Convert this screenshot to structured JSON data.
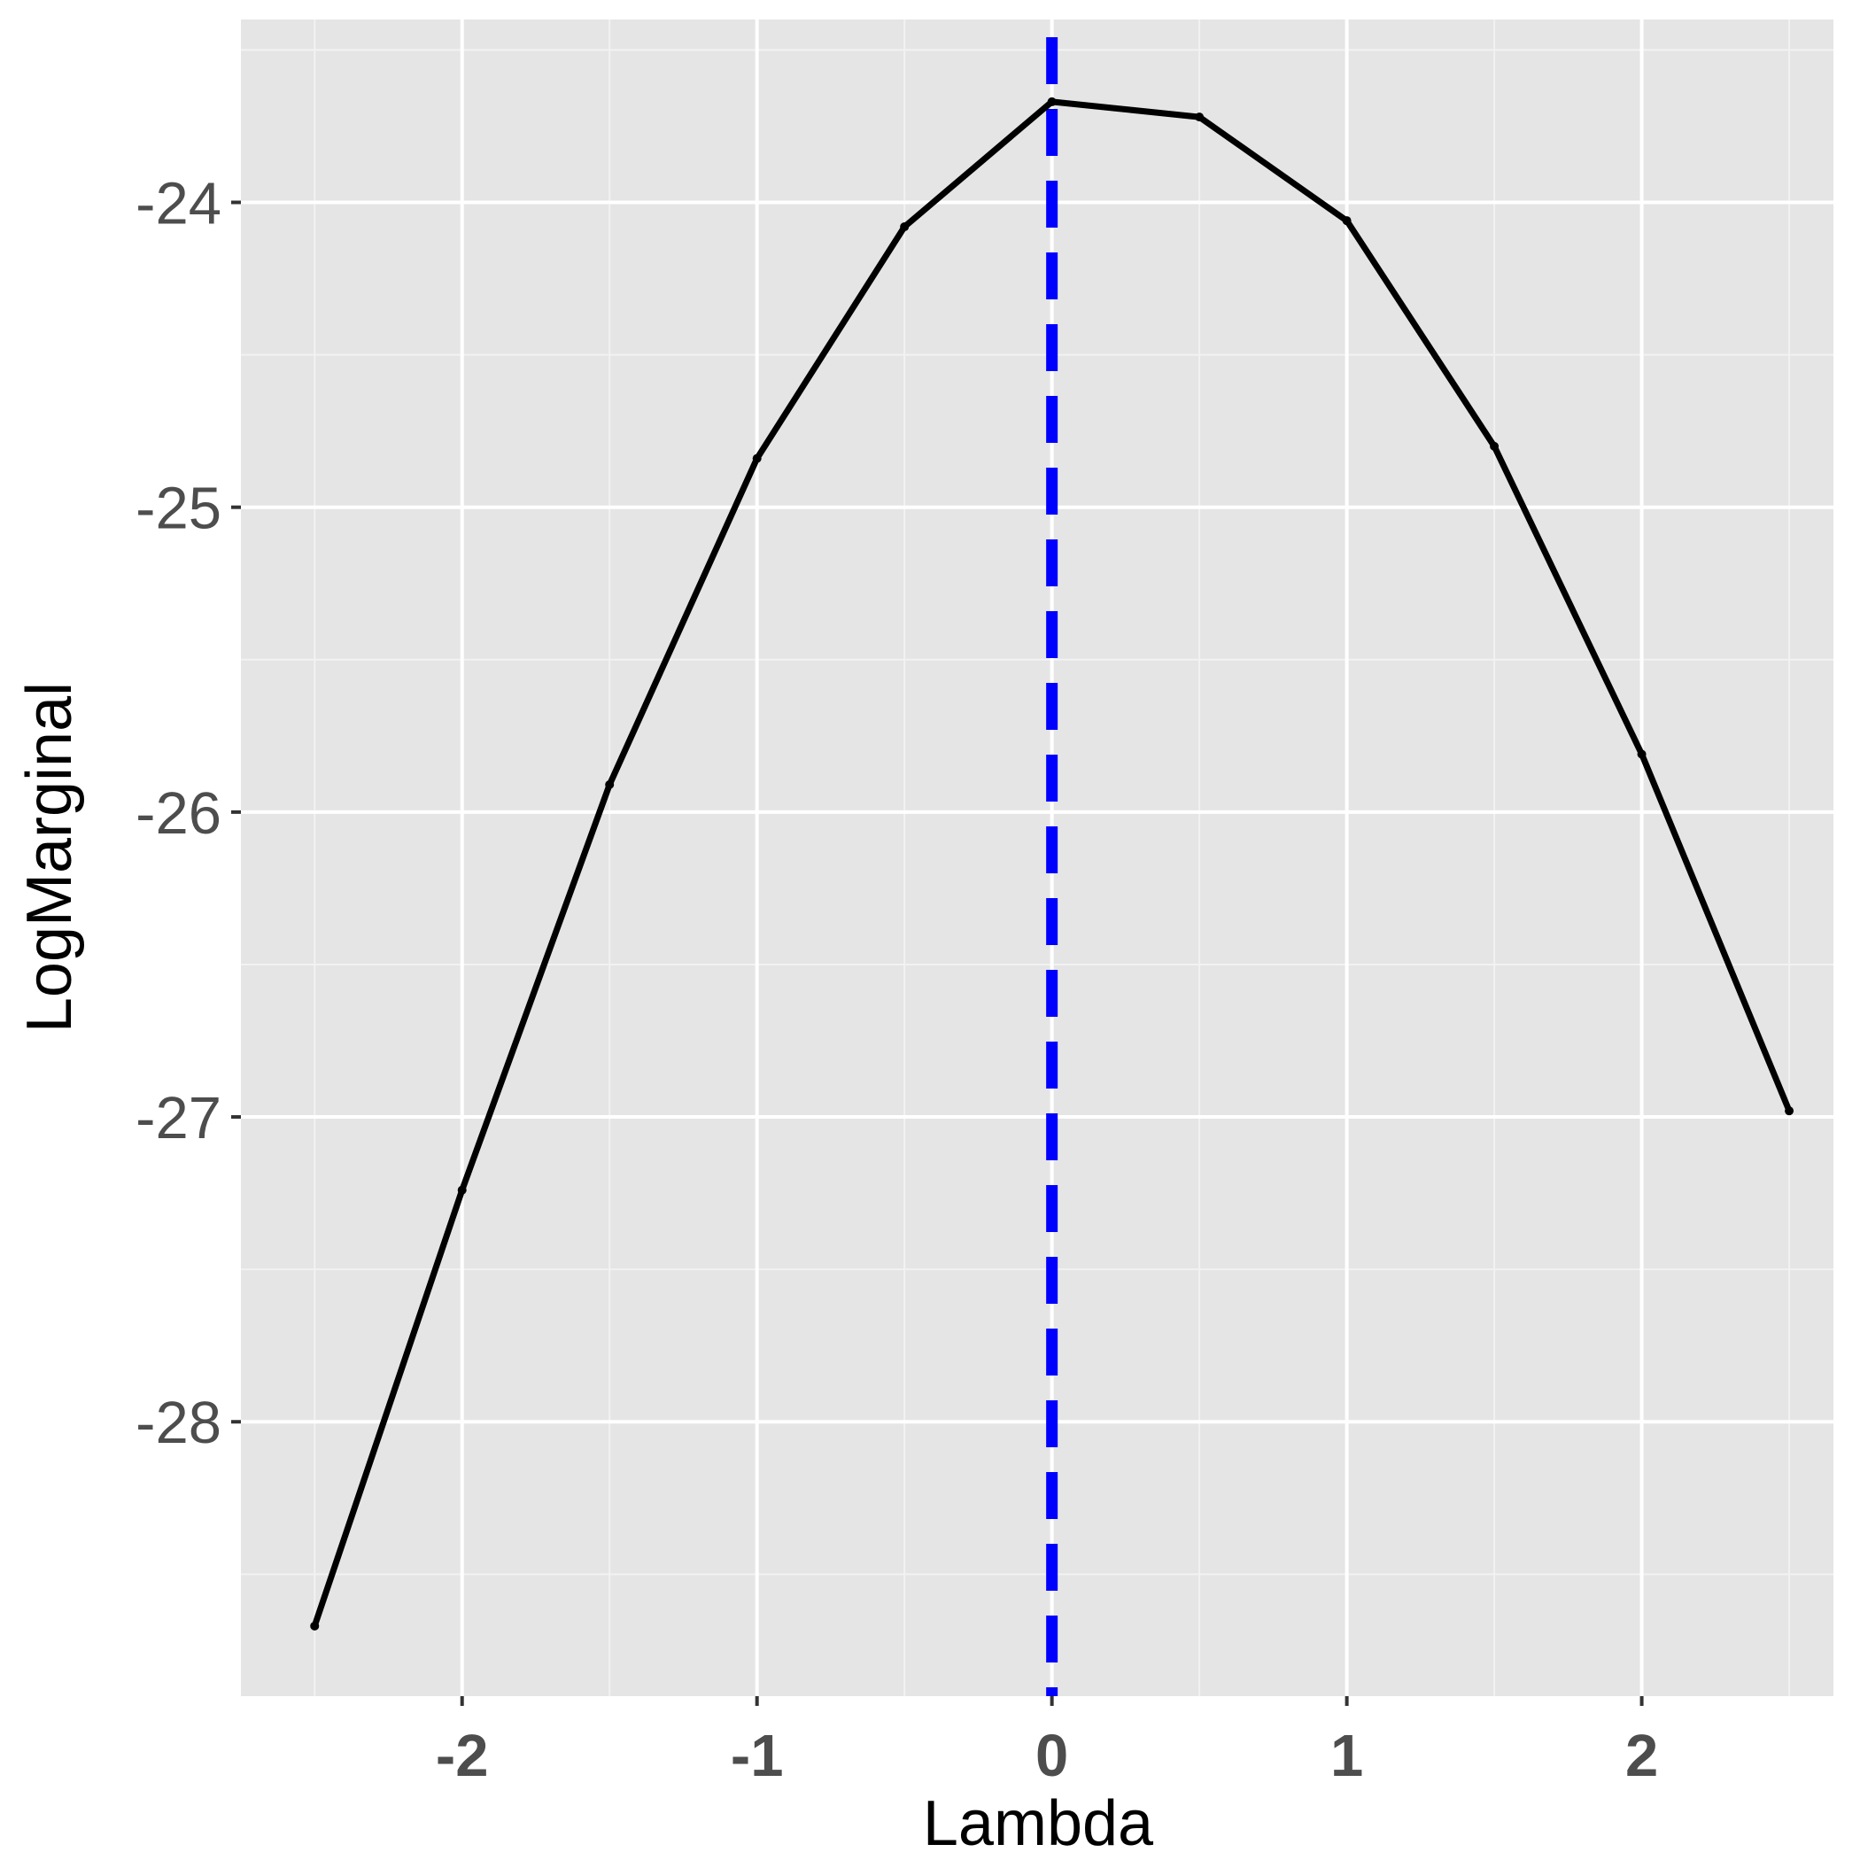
{
  "chart_data": {
    "type": "line",
    "xlabel": "Lambda",
    "ylabel": "LogMarginal",
    "xlim": [
      -2.75,
      2.65
    ],
    "ylim": [
      -28.9,
      -23.4
    ],
    "x_ticks": [
      {
        "value": -2,
        "label": "-2"
      },
      {
        "value": -1,
        "label": "-1"
      },
      {
        "value": 0,
        "label": "0"
      },
      {
        "value": 1,
        "label": "1"
      },
      {
        "value": 2,
        "label": "2"
      }
    ],
    "y_ticks": [
      {
        "value": -24,
        "label": "-24"
      },
      {
        "value": -25,
        "label": "-25"
      },
      {
        "value": -26,
        "label": "-26"
      },
      {
        "value": -27,
        "label": "-27"
      },
      {
        "value": -28,
        "label": "-28"
      }
    ],
    "series": [
      {
        "x": [
          -2.5,
          -2.0,
          -1.5,
          -1.0,
          -0.5,
          0.0,
          0.5,
          1.0,
          1.5,
          2.0,
          2.5
        ],
        "y": [
          -28.67,
          -27.24,
          -25.91,
          -24.84,
          -24.08,
          -23.67,
          -23.72,
          -24.06,
          -24.8,
          -25.81,
          -26.98
        ]
      }
    ],
    "vline": {
      "x": 0.0,
      "style": "dashed"
    },
    "grid": true,
    "colors": {
      "panel_background": "#e5e5e5",
      "grid_major": "#ffffff",
      "grid_minor": "#f2f2f2",
      "line": "#000000",
      "vline": "#0000ff",
      "tick_label": "#4d4d4d",
      "axis_title": "#000000"
    }
  }
}
